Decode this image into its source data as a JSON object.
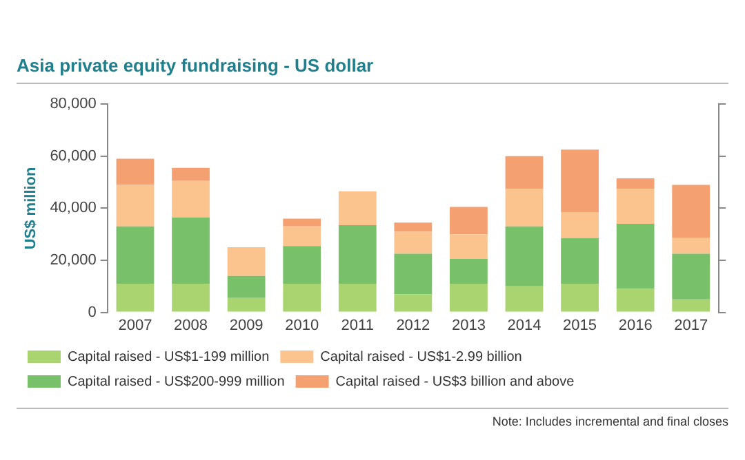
{
  "chart_data": {
    "type": "bar",
    "title": "Asia private equity fundraising - US dollar",
    "ylabel": "US$ million",
    "categories": [
      "2007",
      "2008",
      "2009",
      "2010",
      "2011",
      "2012",
      "2013",
      "2014",
      "2015",
      "2016",
      "2017"
    ],
    "stacked": true,
    "ylim": [
      0,
      80000
    ],
    "yticks": [
      0,
      {
        "value": 20000,
        "label": "20,000"
      },
      {
        "value": 40000,
        "label": "40,000"
      },
      {
        "value": 60000,
        "label": "60,000"
      },
      {
        "value": 80000,
        "label": "80,000"
      }
    ],
    "grid": false,
    "legend": "bottom",
    "series": [
      {
        "name": "Capital raised - US$1-199 million",
        "color": "#a9d46f",
        "values": [
          11000,
          11000,
          5500,
          11000,
          11000,
          7000,
          11000,
          10000,
          11000,
          9000,
          5000
        ]
      },
      {
        "name": "Capital raised - US$200-999 million",
        "color": "#78c06a",
        "values": [
          22000,
          25500,
          8500,
          14500,
          22500,
          15500,
          9500,
          23000,
          17500,
          25000,
          17500
        ]
      },
      {
        "name": "Capital raised - US$1-2.99 billion",
        "color": "#fbc38e",
        "values": [
          16000,
          14000,
          11000,
          7500,
          13000,
          8500,
          9500,
          14500,
          10000,
          13500,
          6000
        ]
      },
      {
        "name": "Capital raised - US$3 billion and above",
        "color": "#f4a071",
        "values": [
          10000,
          5000,
          null,
          3000,
          null,
          3500,
          10500,
          12500,
          24000,
          4000,
          20500
        ]
      }
    ],
    "annotations": [
      "Note: Includes incremental and final closes"
    ]
  }
}
